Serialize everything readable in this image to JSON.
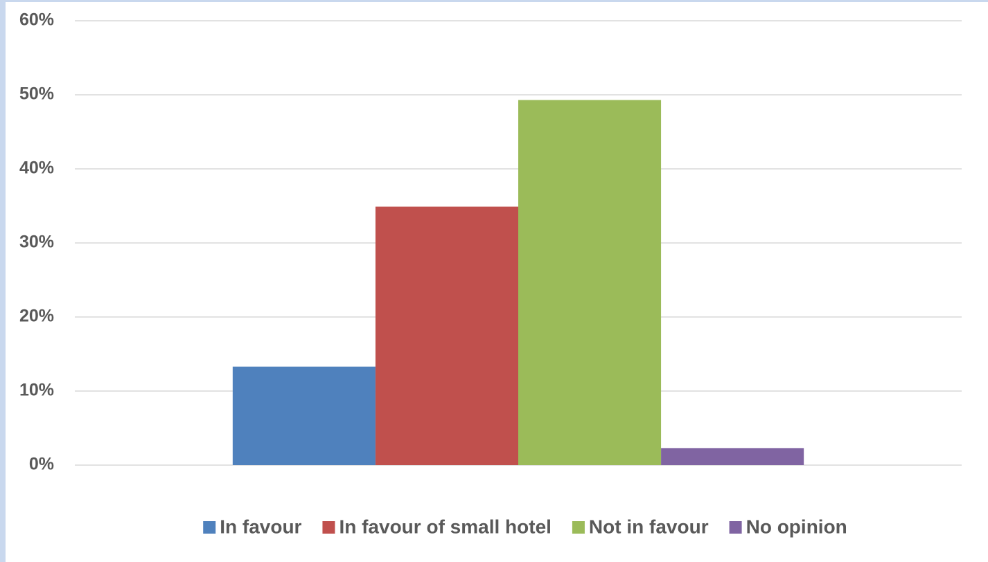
{
  "chart_data": {
    "type": "bar",
    "categories": [
      null
    ],
    "series": [
      {
        "name": "In favour",
        "color": "#4f81bd",
        "values": [
          13.3
        ]
      },
      {
        "name": "In favour of small hotel",
        "color": "#c0504d",
        "values": [
          34.9
        ]
      },
      {
        "name": "Not in favour",
        "color": "#9bbb59",
        "values": [
          49.3
        ]
      },
      {
        "name": "No opinion",
        "color": "#8064a2",
        "values": [
          2.3
        ]
      }
    ],
    "ylim": [
      0,
      60
    ],
    "yticks": [
      {
        "value": 0,
        "label": "0%"
      },
      {
        "value": 10,
        "label": "10%"
      },
      {
        "value": 20,
        "label": "20%"
      },
      {
        "value": 30,
        "label": "30%"
      },
      {
        "value": 40,
        "label": "40%"
      },
      {
        "value": 50,
        "label": "50%"
      },
      {
        "value": 60,
        "label": "60%"
      }
    ],
    "grid": true,
    "legend": "bottom"
  }
}
